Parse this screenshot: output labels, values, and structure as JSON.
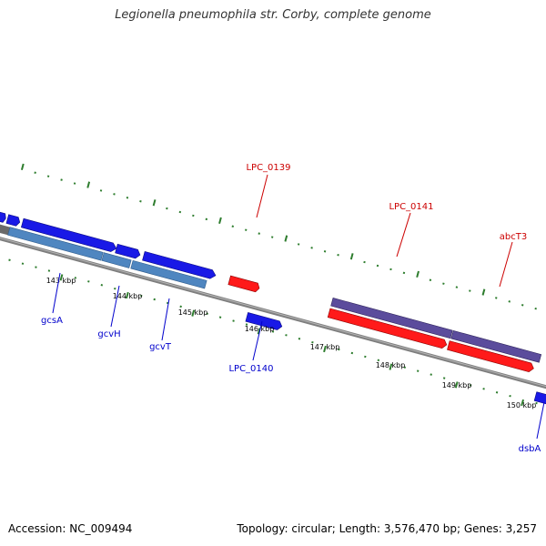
{
  "title": "Legionella pneumophila str. Corby, complete genome",
  "accession": "Accession: NC_009494",
  "summary": "Topology: circular; Length: 3,576,470 bp; Genes: 3,257",
  "colors": {
    "backbone": "#7f7f7f",
    "forward_cds": "#1919e6",
    "reverse_cds": "#ff1a1a",
    "forward_gene": "#4f86c0",
    "reverse_gene": "#5b4c9c",
    "tick": "#2e7d2e",
    "dot": "#2e7d2e",
    "label_forward": "#0000cc",
    "label_reverse": "#cc0000"
  },
  "kbp_ticks": [
    {
      "label": "143 kbp"
    },
    {
      "label": "144 kbp"
    },
    {
      "label": "145 kbp"
    },
    {
      "label": "146 kbp"
    },
    {
      "label": "147 kbp"
    },
    {
      "label": "148 kbp"
    },
    {
      "label": "149 kbp"
    },
    {
      "label": "150 kbp"
    }
  ],
  "gene_labels": [
    {
      "name": "LPC_0139",
      "strand": "reverse"
    },
    {
      "name": "LPC_0141",
      "strand": "reverse"
    },
    {
      "name": "abcT3",
      "strand": "reverse"
    },
    {
      "name": "gcsA",
      "strand": "forward"
    },
    {
      "name": "gcvH",
      "strand": "forward"
    },
    {
      "name": "gcvT",
      "strand": "forward"
    },
    {
      "name": "LPC_0140",
      "strand": "forward"
    },
    {
      "name": "dsbA",
      "strand": "forward"
    }
  ]
}
